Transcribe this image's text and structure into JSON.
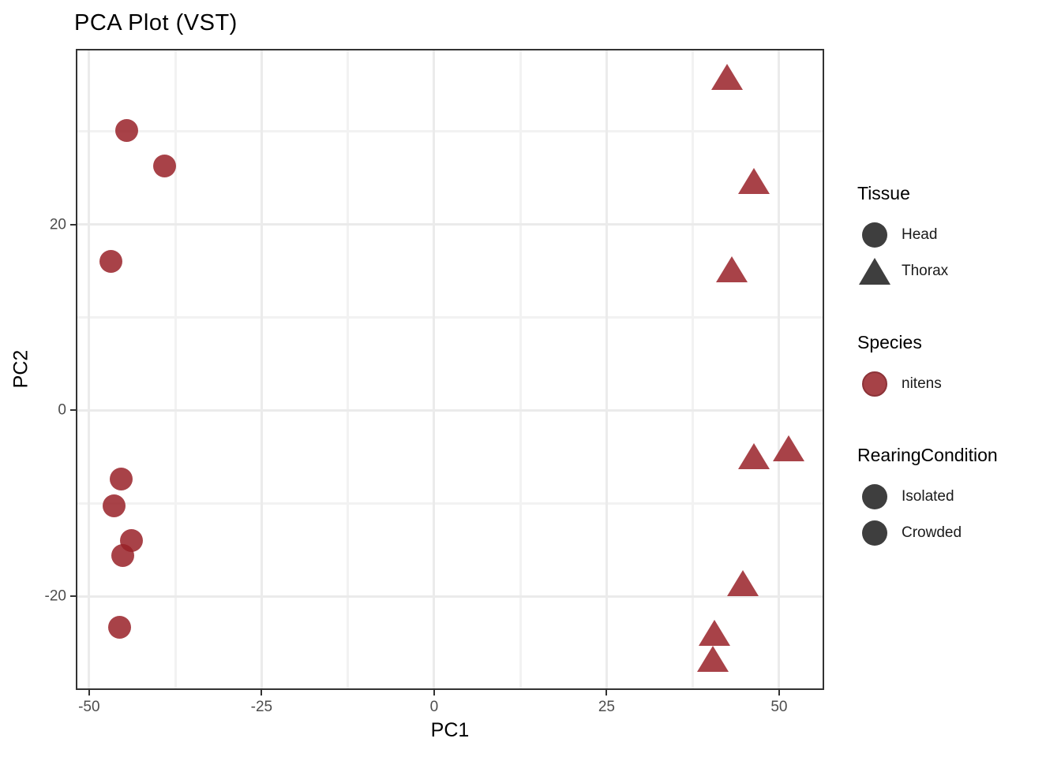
{
  "title": "PCA Plot (VST)",
  "axes": {
    "x": {
      "title": "PC1",
      "min": -51.7,
      "max": 56.3,
      "major_ticks": [
        {
          "v": -50,
          "label": "-50"
        },
        {
          "v": -25,
          "label": "-25"
        },
        {
          "v": 0,
          "label": "0"
        },
        {
          "v": 25,
          "label": "25"
        },
        {
          "v": 50,
          "label": "50"
        }
      ],
      "minor_ticks": [
        -37.5,
        -12.5,
        12.5,
        37.5
      ]
    },
    "y": {
      "title": "PC2",
      "min": -29.9,
      "max": 38.7,
      "major_ticks": [
        {
          "v": 20,
          "label": "20"
        },
        {
          "v": 0,
          "label": "0"
        },
        {
          "v": -20,
          "label": "-20"
        }
      ],
      "minor_ticks": [
        30,
        10,
        -10
      ]
    }
  },
  "chart_data": {
    "type": "scatter",
    "title": "PCA Plot (VST)",
    "xlabel": "PC1",
    "ylabel": "PC2",
    "xlim": [
      -51.7,
      56.3
    ],
    "ylim": [
      -29.9,
      38.7
    ],
    "grid": "on",
    "legend_position": "right",
    "point_color": "#992128",
    "point_alpha": 0.85,
    "series": [
      {
        "name": "Head",
        "tissue": "Head",
        "species": "nitens",
        "shape": "circle",
        "marker_size": 29,
        "points": [
          {
            "x": -44.6,
            "y": 30.1
          },
          {
            "x": -39.1,
            "y": 26.3
          },
          {
            "x": -46.8,
            "y": 16.0
          },
          {
            "x": -45.3,
            "y": -7.4
          },
          {
            "x": -46.4,
            "y": -10.3
          },
          {
            "x": -43.9,
            "y": -14.0
          },
          {
            "x": -45.1,
            "y": -15.6
          },
          {
            "x": -45.6,
            "y": -23.3
          }
        ]
      },
      {
        "name": "Thorax",
        "tissue": "Thorax",
        "species": "nitens",
        "shape": "triangle",
        "marker_size": 33,
        "points": [
          {
            "x": 42.4,
            "y": 35.9
          },
          {
            "x": 46.4,
            "y": 24.7
          },
          {
            "x": 43.1,
            "y": 15.2
          },
          {
            "x": 46.4,
            "y": -4.9
          },
          {
            "x": 51.4,
            "y": -4.1
          },
          {
            "x": 44.8,
            "y": -18.6
          },
          {
            "x": 40.6,
            "y": -23.9
          },
          {
            "x": 40.4,
            "y": -26.7
          }
        ]
      }
    ]
  },
  "legend": {
    "groups": [
      {
        "title": "Tissue",
        "items": [
          {
            "label": "Head",
            "shape": "circle",
            "color": "#3e3e3e"
          },
          {
            "label": "Thorax",
            "shape": "triangle",
            "color": "#3e3e3e"
          }
        ]
      },
      {
        "title": "Species",
        "items": [
          {
            "label": "nitens",
            "shape": "circle",
            "color": "#a64247",
            "stroke": "#8c3338"
          }
        ]
      },
      {
        "title": "RearingCondition",
        "items": [
          {
            "label": "Isolated",
            "shape": "circle",
            "color": "#3e3e3e"
          },
          {
            "label": "Crowded",
            "shape": "circle",
            "color": "#3e3e3e"
          }
        ]
      }
    ]
  },
  "style": {
    "panel_border": "#333333",
    "grid_major": "#ebebeb",
    "grid_minor": "#f2f2f2",
    "tick_label_color": "#4d4d4d",
    "text_color": "#000000"
  }
}
